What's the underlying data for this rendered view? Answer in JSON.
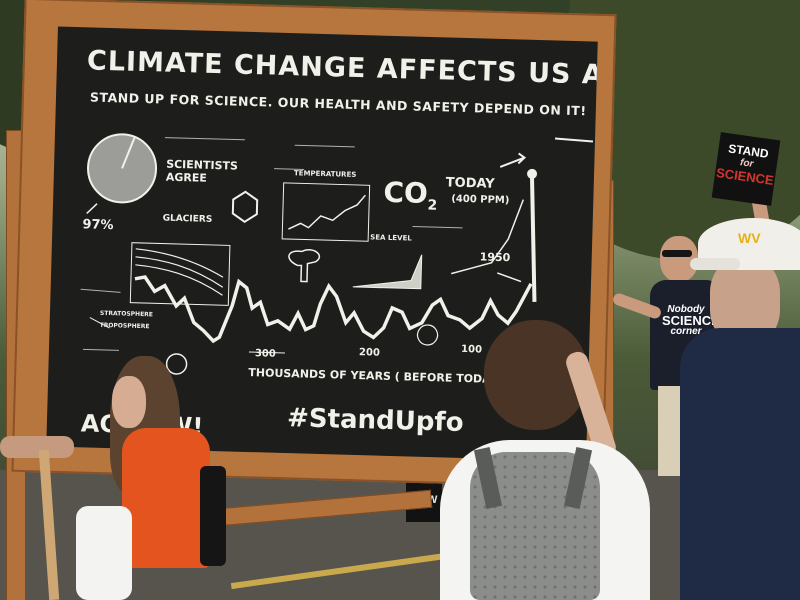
{
  "board": {
    "title": "CLIMATE CHANGE AFFECTS US ALL",
    "subtitle": "STAND UP FOR SCIENCE. OUR HEALTH AND SAFETY DEPEND ON IT!",
    "scientists_agree": "SCIENTISTS AGREE",
    "percent": "97%",
    "glaciers": "GLACIERS",
    "temperatures": "TEMPERATURES",
    "sea_level": "SEA LEVEL",
    "stratosphere": "STRATOSPHERE",
    "troposphere": "TROPOSPHERE",
    "co2": "CO",
    "co2_sub": "2",
    "today": "TODAY",
    "ppm": "(400 PPM)",
    "year_1950": "1950",
    "tick_300": "300",
    "tick_200": "200",
    "tick_100": "100",
    "x_axis": "THOUSANDS OF YEARS ( BEFORE TODAY )",
    "hashtag": "#StandUpfo",
    "act_now": "AC    NOW!"
  },
  "protester_sign": {
    "line1": "STAND",
    "line2": "for",
    "line3": "SCIENCE"
  },
  "shirt": {
    "line1": "Nobody",
    "line2": "SCIENCE",
    "line3": "corner"
  },
  "cap_logo": "WV",
  "background_sign": {
    "tail": "NOW"
  },
  "colors": {
    "chalkboard": "#1d1d1c",
    "chalk": "#f1f1ea",
    "frame_wood": "#b8763f",
    "orange_shirt": "#e4541e",
    "navy_shirt": "#1f2a44"
  }
}
